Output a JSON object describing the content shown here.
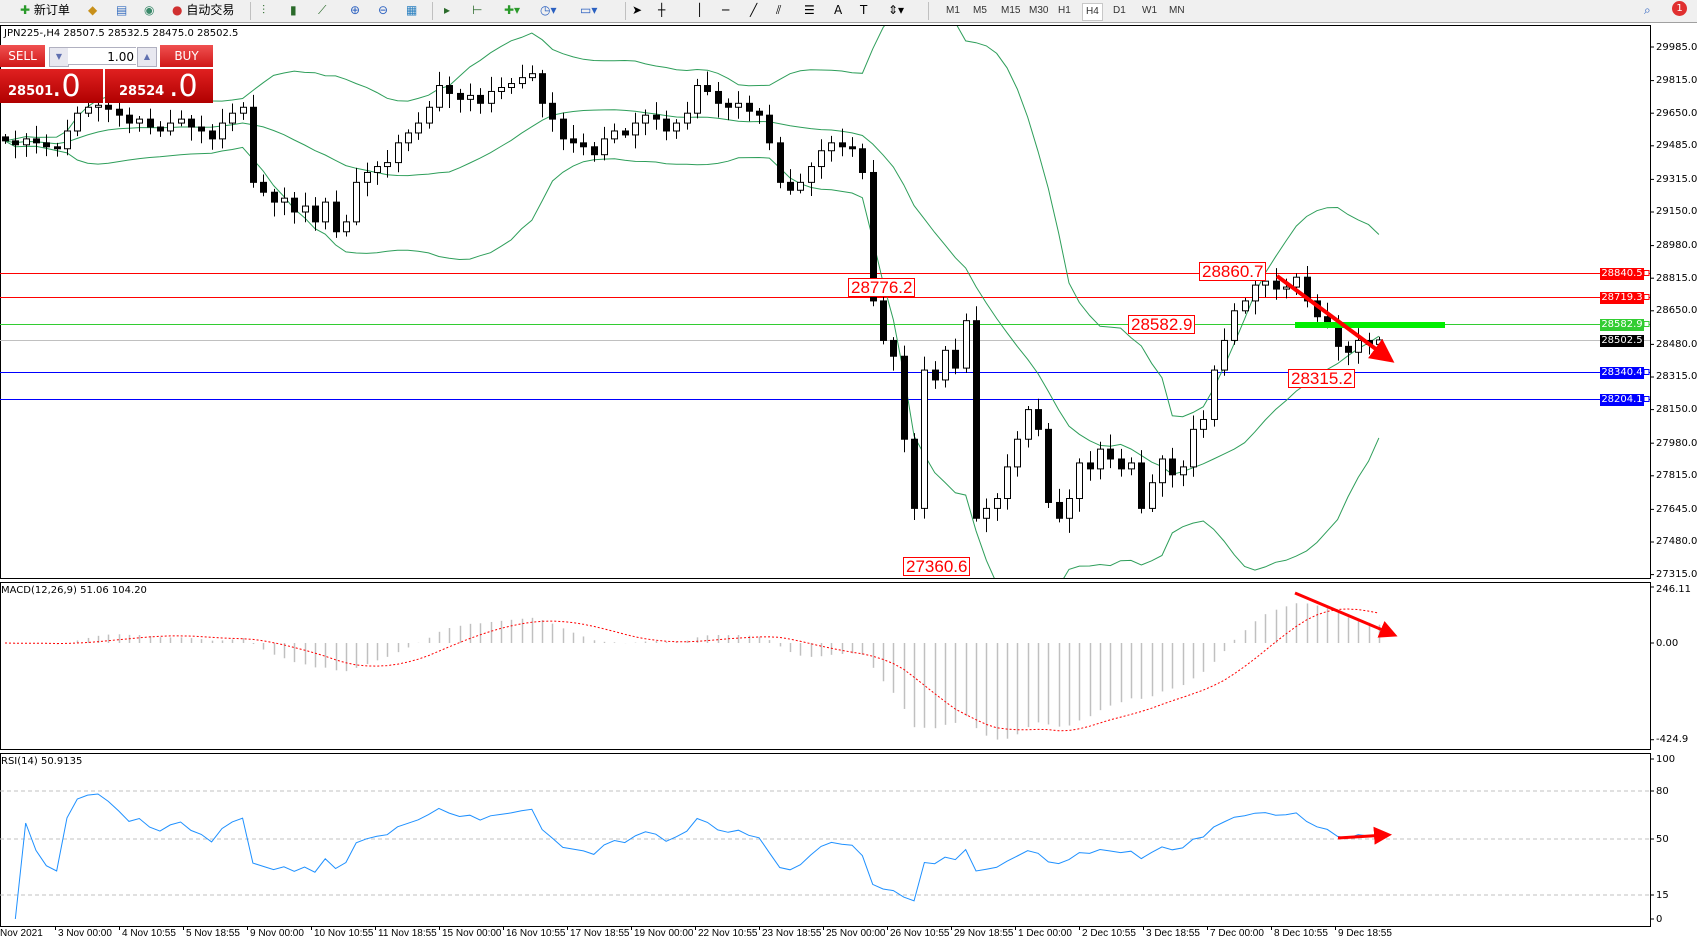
{
  "toolbar": {
    "new_order_label": "新订单",
    "auto_trading_label": "自动交易",
    "icons": [
      "new-order-icon",
      "history-icon",
      "market-watch-icon",
      "signals-icon",
      "auto-trading-icon",
      "bar-chart-icon",
      "candlestick-icon",
      "line-chart-icon",
      "zoom-in-icon",
      "zoom-out-icon",
      "tile-windows-icon",
      "auto-scroll-icon",
      "chart-shift-icon",
      "indicators-icon",
      "periods-icon",
      "templates-icon",
      "cursor-icon",
      "crosshair-icon",
      "vertical-line-icon",
      "horizontal-line-icon",
      "trendline-icon",
      "equidistant-channel-icon",
      "fibonacci-icon",
      "text-icon",
      "text-label-icon",
      "arrows-icon",
      "search-icon",
      "notification-icon"
    ],
    "timeframes": [
      "M1",
      "M5",
      "M15",
      "M30",
      "H1",
      "H4",
      "D1",
      "W1",
      "MN"
    ],
    "selected_timeframe": "H4",
    "notification_count": "1"
  },
  "chart": {
    "info_line": "JPN225-,H4  28507.5 28532.5 28475.0 28502.5",
    "one_click": {
      "sell_label": "SELL",
      "buy_label": "BUY",
      "lot": "1.00",
      "sell_price_main": "28501",
      "sell_price_big": ".0",
      "buy_price_main": "28524",
      "buy_price_big": ".0"
    },
    "annotations": [
      "28860.7",
      "28776.2",
      "28582.9",
      "28315.2",
      "27360.6"
    ],
    "price_axis": [
      "29985.0",
      "29815.0",
      "29650.0",
      "29485.0",
      "29315.0",
      "29150.0",
      "28980.0",
      "28815.0",
      "28650.0",
      "28480.0",
      "28315.0",
      "28150.0",
      "27980.0",
      "27815.0",
      "27645.0",
      "27480.0",
      "27315.0"
    ],
    "level_lines": [
      {
        "price": 28840.5,
        "label": "28840.5",
        "color": "#ff0000"
      },
      {
        "price": 28719.3,
        "label": "28719.3",
        "color": "#ff0000"
      },
      {
        "price": 28582.9,
        "label": "28582.9",
        "color": "#32cd32"
      },
      {
        "price": 28502.5,
        "label": "28502.5",
        "color": "#000000",
        "line_color": "#c0c0c0"
      },
      {
        "price": 28340.4,
        "label": "28340.4",
        "color": "#0000ff"
      },
      {
        "price": 28204.1,
        "label": "28204.1",
        "color": "#0000ff"
      }
    ],
    "time_axis": [
      "Nov 2021",
      "3 Nov 00:00",
      "4 Nov 10:55",
      "5 Nov 18:55",
      "9 Nov 00:00",
      "10 Nov 10:55",
      "11 Nov 18:55",
      "15 Nov 00:00",
      "16 Nov 10:55",
      "17 Nov 18:55",
      "19 Nov 00:00",
      "22 Nov 10:55",
      "23 Nov 18:55",
      "25 Nov 00:00",
      "26 Nov 10:55",
      "29 Nov 18:55",
      "1 Dec 00:00",
      "2 Dec 10:55",
      "3 Dec 18:55",
      "7 Dec 00:00",
      "8 Dec 10:55",
      "9 Dec 18:55"
    ]
  },
  "macd": {
    "label": "MACD(12,26,9) 51.06 104.20",
    "axis": [
      "246.11",
      "0.00",
      "-424.9"
    ]
  },
  "rsi": {
    "label": "RSI(14) 50.9135",
    "axis": [
      "100",
      "80",
      "50",
      "15",
      "0"
    ]
  },
  "colors": {
    "bollinger": "#2e9e5a",
    "macd_hist": "#c0c0c0",
    "macd_signal": "#ff0000",
    "rsi": "#1e90ff",
    "annotation": "#ff0000",
    "highlight": "#00ee00"
  },
  "chart_data": {
    "type": "candlestick",
    "symbol": "JPN225-",
    "timeframe": "H4",
    "ylim": [
      27315,
      29985
    ],
    "indicators": [
      "Bollinger Bands",
      "MACD(12,26,9)",
      "RSI(14)"
    ],
    "closes": [
      29510,
      29490,
      29520,
      29500,
      29480,
      29470,
      29560,
      29650,
      29680,
      29690,
      29670,
      29640,
      29600,
      29620,
      29580,
      29560,
      29600,
      29620,
      29580,
      29560,
      29520,
      29600,
      29650,
      29680,
      29300,
      29250,
      29200,
      29220,
      29150,
      29180,
      29100,
      29200,
      29050,
      29100,
      29300,
      29350,
      29380,
      29400,
      29500,
      29550,
      29600,
      29680,
      29790,
      29750,
      29720,
      29740,
      29700,
      29760,
      29780,
      29800,
      29830,
      29850,
      29700,
      29620,
      29520,
      29500,
      29480,
      29440,
      29520,
      29560,
      29540,
      29600,
      29640,
      29620,
      29560,
      29600,
      29650,
      29790,
      29760,
      29700,
      29680,
      29700,
      29660,
      29640,
      29500,
      29300,
      29260,
      29300,
      29380,
      29460,
      29500,
      29480,
      29470,
      29350,
      28700,
      28500,
      28420,
      28000,
      27650,
      28350,
      28300,
      28450,
      28360,
      28600,
      27600,
      27650,
      27700,
      27860,
      28000,
      28150,
      28050,
      27680,
      27600,
      27700,
      27880,
      27850,
      27950,
      27900,
      27850,
      27880,
      27650,
      27780,
      27900,
      27820,
      27860,
      28050,
      28100,
      28350,
      28500,
      28650,
      28700,
      28780,
      28800,
      28760,
      28770,
      28820,
      28700,
      28620,
      28580,
      28470,
      28440,
      28500,
      28480,
      28502.5
    ]
  }
}
